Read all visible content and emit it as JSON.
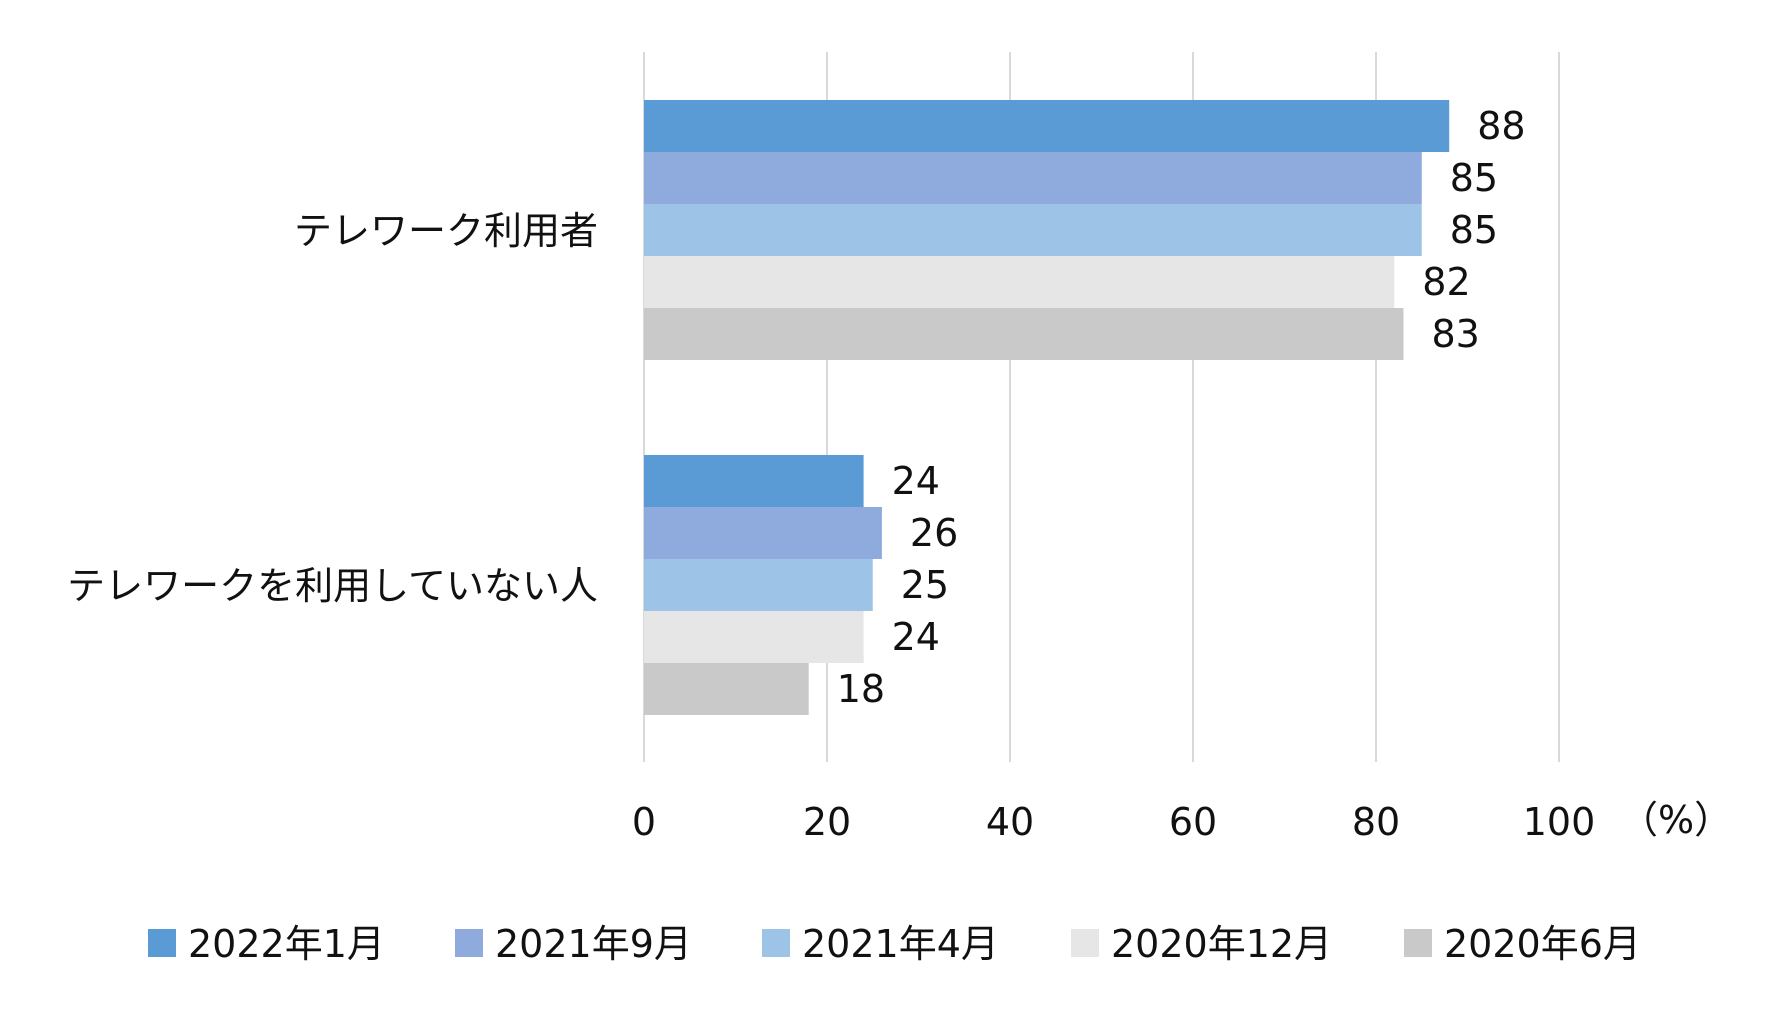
{
  "chart_data": {
    "type": "bar",
    "orientation": "horizontal",
    "categories": [
      "テレワーク利用者",
      "テレワークを利用していない人"
    ],
    "series": [
      {
        "name": "2022年1月",
        "values": [
          88,
          24
        ],
        "color": "#5b9bd5"
      },
      {
        "name": "2021年9月",
        "values": [
          85,
          26
        ],
        "color": "#8faadc"
      },
      {
        "name": "2021年4月",
        "values": [
          85,
          25
        ],
        "color": "#9dc3e6"
      },
      {
        "name": "2020年12月",
        "values": [
          82,
          24
        ],
        "color": "#e6e6e6"
      },
      {
        "name": "2020年6月",
        "values": [
          83,
          18
        ],
        "color": "#c9c9c9"
      }
    ],
    "xlim": [
      0,
      100
    ],
    "x_ticks": [
      "0",
      "20",
      "40",
      "60",
      "80",
      "100"
    ],
    "x_unit": "（%）",
    "grid": "vertical",
    "legend_position": "bottom",
    "data_labels": true
  }
}
